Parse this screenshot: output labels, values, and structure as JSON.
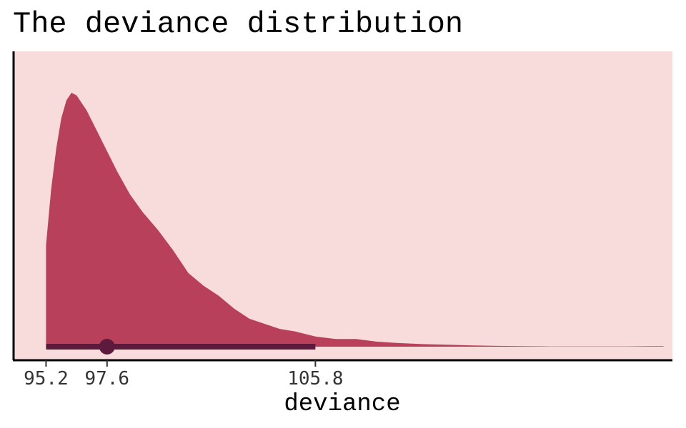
{
  "chart_data": {
    "type": "area",
    "title": "The deviance distribution",
    "xlabel": "deviance",
    "ylabel": "",
    "xlim": [
      93.95,
      119.85
    ],
    "x_ticks": [
      95.2,
      97.6,
      105.8
    ],
    "x_tick_labels": [
      "95.2",
      "97.6",
      "105.8"
    ],
    "y_axis_ticks": false,
    "grid": false,
    "legend": "none",
    "density": {
      "x": [
        95.2,
        95.4,
        95.6,
        95.8,
        96.0,
        96.2,
        96.4,
        96.8,
        97.2,
        97.6,
        98.0,
        98.5,
        99.0,
        99.6,
        100.2,
        100.8,
        101.4,
        102.0,
        102.6,
        103.2,
        103.8,
        104.4,
        105.0,
        105.8,
        106.6,
        107.4,
        108.2,
        109.0,
        110.0,
        111.0,
        112.0,
        113.0,
        114.0,
        115.0,
        116.0,
        117.0,
        118.0,
        119.0,
        119.5
      ],
      "density": [
        0.4,
        0.62,
        0.78,
        0.9,
        0.97,
        1.0,
        0.99,
        0.93,
        0.85,
        0.77,
        0.69,
        0.6,
        0.53,
        0.46,
        0.38,
        0.29,
        0.24,
        0.2,
        0.15,
        0.11,
        0.09,
        0.07,
        0.06,
        0.04,
        0.03,
        0.03,
        0.02,
        0.015,
        0.01,
        0.008,
        0.005,
        0.003,
        0.002,
        0.001,
        0.001,
        0.001,
        0.001,
        0.002,
        0.002
      ]
    },
    "point_interval": {
      "point": 97.6,
      "lower": 95.2,
      "upper": 105.8
    },
    "colors": {
      "panel_background": "#f8dcdc",
      "density_fill": "#b9405a",
      "interval": "#5e1a3c",
      "axis": "#000000"
    }
  }
}
